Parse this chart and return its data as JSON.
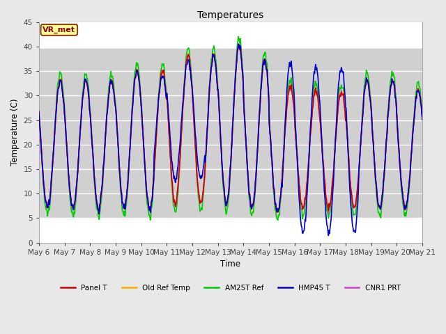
{
  "title": "Temperatures",
  "xlabel": "Time",
  "ylabel": "Temperature (C)",
  "ylim": [
    0,
    45
  ],
  "annotation_text": "VR_met",
  "background_color": "#e8e8e8",
  "series": [
    {
      "label": "Panel T",
      "color": "#cc0000",
      "lw": 1.2
    },
    {
      "label": "Old Ref Temp",
      "color": "#ffaa00",
      "lw": 1.2
    },
    {
      "label": "AM25T Ref",
      "color": "#00cc00",
      "lw": 1.2
    },
    {
      "label": "HMP45 T",
      "color": "#0000cc",
      "lw": 1.2
    },
    {
      "label": "CNR1 PRT",
      "color": "#cc44cc",
      "lw": 1.2
    }
  ],
  "tick_dates": [
    "May 6",
    "May 7",
    "May 8",
    "May 9",
    "May 10",
    "May 11",
    "May 12",
    "May 13",
    "May 14",
    "May 15",
    "May 16",
    "May 17",
    "May 18",
    "May 19",
    "May 20",
    "May 21"
  ],
  "yticks": [
    0,
    5,
    10,
    15,
    20,
    25,
    30,
    35,
    40,
    45
  ],
  "gray_band": [
    5.0,
    39.5
  ],
  "n_days": 15,
  "pts_per_day": 48
}
